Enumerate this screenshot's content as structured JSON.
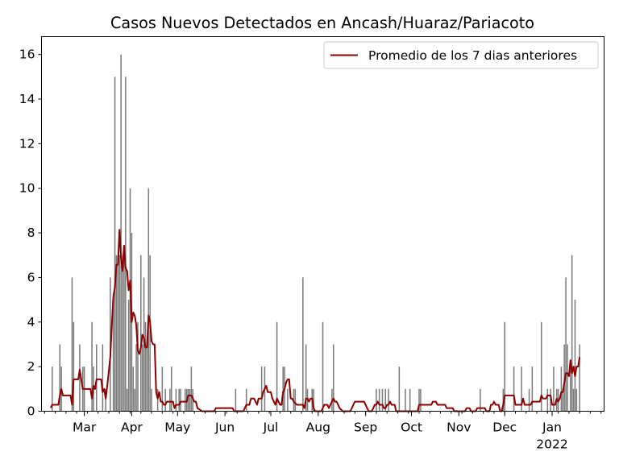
{
  "chart_data": {
    "type": "bar",
    "title": "Casos Nuevos Detectados en Ancash/Huaraz/Pariacoto",
    "xlabel": "",
    "ylabel": "",
    "ylim": [
      0,
      16.8
    ],
    "yticks": [
      0,
      2,
      4,
      6,
      8,
      10,
      12,
      14,
      16
    ],
    "x_range_days": [
      -1,
      367
    ],
    "x_start_date": "2021-02-01",
    "xticks": [
      {
        "day": 27,
        "label": "Mar",
        "sublabel": ""
      },
      {
        "day": 58,
        "label": "Apr",
        "sublabel": ""
      },
      {
        "day": 88,
        "label": "May",
        "sublabel": ""
      },
      {
        "day": 119,
        "label": "Jun",
        "sublabel": ""
      },
      {
        "day": 149,
        "label": "Jul",
        "sublabel": ""
      },
      {
        "day": 180,
        "label": "Aug",
        "sublabel": ""
      },
      {
        "day": 211,
        "label": "Sep",
        "sublabel": ""
      },
      {
        "day": 241,
        "label": "Oct",
        "sublabel": ""
      },
      {
        "day": 272,
        "label": "Nov",
        "sublabel": ""
      },
      {
        "day": 302,
        "label": "Dec",
        "sublabel": ""
      },
      {
        "day": 333,
        "label": "Jan",
        "sublabel": "2022"
      }
    ],
    "grid": false,
    "legend_position": "top-right",
    "bar_color": "#7a7a7a",
    "line_color": "#8b0000",
    "bars": [
      [
        6,
        2
      ],
      [
        11,
        3
      ],
      [
        12,
        2
      ],
      [
        19,
        6
      ],
      [
        20,
        4
      ],
      [
        24,
        3
      ],
      [
        26,
        2
      ],
      [
        27,
        2
      ],
      [
        32,
        4
      ],
      [
        33,
        2
      ],
      [
        35,
        3
      ],
      [
        39,
        3
      ],
      [
        41,
        1
      ],
      [
        44,
        6
      ],
      [
        46,
        5
      ],
      [
        47,
        15
      ],
      [
        48,
        7
      ],
      [
        49,
        7
      ],
      [
        50,
        7
      ],
      [
        51,
        16
      ],
      [
        52,
        7
      ],
      [
        53,
        7
      ],
      [
        54,
        15
      ],
      [
        55,
        1
      ],
      [
        56,
        5
      ],
      [
        57,
        10
      ],
      [
        58,
        8
      ],
      [
        59,
        2
      ],
      [
        60,
        1
      ],
      [
        61,
        3
      ],
      [
        62,
        4
      ],
      [
        64,
        7
      ],
      [
        65,
        3
      ],
      [
        66,
        6
      ],
      [
        67,
        4
      ],
      [
        68,
        3
      ],
      [
        69,
        10
      ],
      [
        70,
        7
      ],
      [
        71,
        1
      ],
      [
        75,
        1
      ],
      [
        78,
        2
      ],
      [
        80,
        1
      ],
      [
        83,
        1
      ],
      [
        84,
        2
      ],
      [
        87,
        1
      ],
      [
        89,
        1
      ],
      [
        90,
        1
      ],
      [
        93,
        1
      ],
      [
        94,
        1
      ],
      [
        95,
        1
      ],
      [
        96,
        1
      ],
      [
        97,
        2
      ],
      [
        98,
        1
      ],
      [
        126,
        1
      ],
      [
        133,
        1
      ],
      [
        143,
        2
      ],
      [
        145,
        2
      ],
      [
        153,
        4
      ],
      [
        157,
        2
      ],
      [
        158,
        2
      ],
      [
        160,
        1
      ],
      [
        164,
        1
      ],
      [
        165,
        1
      ],
      [
        170,
        6
      ],
      [
        172,
        3
      ],
      [
        173,
        1
      ],
      [
        176,
        1
      ],
      [
        177,
        1
      ],
      [
        183,
        4
      ],
      [
        189,
        1
      ],
      [
        190,
        3
      ],
      [
        218,
        1
      ],
      [
        220,
        1
      ],
      [
        222,
        1
      ],
      [
        224,
        1
      ],
      [
        226,
        1
      ],
      [
        233,
        2
      ],
      [
        237,
        1
      ],
      [
        240,
        1
      ],
      [
        246,
        1
      ],
      [
        247,
        1
      ],
      [
        286,
        1
      ],
      [
        301,
        1
      ],
      [
        302,
        4
      ],
      [
        308,
        2
      ],
      [
        313,
        2
      ],
      [
        318,
        1
      ],
      [
        320,
        2
      ],
      [
        326,
        4
      ],
      [
        330,
        1
      ],
      [
        332,
        1
      ],
      [
        334,
        2
      ],
      [
        336,
        1
      ],
      [
        337,
        1
      ],
      [
        339,
        2
      ],
      [
        340,
        1
      ],
      [
        341,
        3
      ],
      [
        342,
        6
      ],
      [
        343,
        3
      ],
      [
        345,
        2
      ],
      [
        346,
        7
      ],
      [
        347,
        1
      ],
      [
        348,
        5
      ],
      [
        349,
        1
      ],
      [
        351,
        3
      ]
    ],
    "series": [
      {
        "name": "Promedio de los 7 dias anteriores",
        "points": [
          [
            5,
            0.15
          ],
          [
            6,
            0.29
          ],
          [
            10,
            0.29
          ],
          [
            11,
            0.71
          ],
          [
            12,
            1.0
          ],
          [
            13,
            0.71
          ],
          [
            18,
            0.71
          ],
          [
            19,
            0.29
          ],
          [
            20,
            1.43
          ],
          [
            23,
            1.43
          ],
          [
            24,
            1.86
          ],
          [
            25,
            1.43
          ],
          [
            26,
            1.0
          ],
          [
            31,
            1.0
          ],
          [
            32,
            0.57
          ],
          [
            33,
            1.14
          ],
          [
            34,
            1.0
          ],
          [
            35,
            1.43
          ],
          [
            38,
            1.43
          ],
          [
            39,
            0.86
          ],
          [
            40,
            1.0
          ],
          [
            41,
            0.57
          ],
          [
            42,
            1.14
          ],
          [
            44,
            2.43
          ],
          [
            45,
            3.86
          ],
          [
            46,
            5.14
          ],
          [
            47,
            5.57
          ],
          [
            48,
            6.57
          ],
          [
            49,
            6.57
          ],
          [
            50,
            8.14
          ],
          [
            51,
            6.86
          ],
          [
            52,
            6.29
          ],
          [
            53,
            7.43
          ],
          [
            54,
            6.43
          ],
          [
            55,
            6.29
          ],
          [
            56,
            5.43
          ],
          [
            57,
            5.86
          ],
          [
            58,
            4.0
          ],
          [
            59,
            4.43
          ],
          [
            60,
            4.29
          ],
          [
            61,
            3.86
          ],
          [
            62,
            2.71
          ],
          [
            63,
            2.57
          ],
          [
            64,
            2.86
          ],
          [
            65,
            3.43
          ],
          [
            66,
            3.29
          ],
          [
            67,
            2.86
          ],
          [
            68,
            2.86
          ],
          [
            69,
            4.29
          ],
          [
            70,
            4.0
          ],
          [
            71,
            3.14
          ],
          [
            72,
            3.0
          ],
          [
            73,
            3.0
          ],
          [
            74,
            0.86
          ],
          [
            75,
            0.57
          ],
          [
            76,
            0.86
          ],
          [
            77,
            0.43
          ],
          [
            78,
            0.43
          ],
          [
            79,
            0.29
          ],
          [
            80,
            0.29
          ],
          [
            81,
            0.43
          ],
          [
            85,
            0.43
          ],
          [
            86,
            0.14
          ],
          [
            87,
            0.29
          ],
          [
            89,
            0.29
          ],
          [
            90,
            0.43
          ],
          [
            94,
            0.43
          ],
          [
            95,
            0.71
          ],
          [
            97,
            0.71
          ],
          [
            98,
            0.57
          ],
          [
            99,
            0.43
          ],
          [
            100,
            0.43
          ],
          [
            101,
            0.14
          ],
          [
            104,
            0.0
          ],
          [
            112,
            0.0
          ],
          [
            113,
            0.14
          ],
          [
            118,
            0.14
          ],
          [
            124,
            0.14
          ],
          [
            125,
            0.0
          ],
          [
            131,
            0.0
          ],
          [
            132,
            0.14
          ],
          [
            133,
            0.29
          ],
          [
            135,
            0.29
          ],
          [
            136,
            0.57
          ],
          [
            138,
            0.57
          ],
          [
            139,
            0.43
          ],
          [
            140,
            0.29
          ],
          [
            141,
            0.57
          ],
          [
            143,
            0.57
          ],
          [
            144,
            0.86
          ],
          [
            146,
            1.14
          ],
          [
            147,
            0.86
          ],
          [
            149,
            0.86
          ],
          [
            150,
            0.57
          ],
          [
            151,
            0.43
          ],
          [
            152,
            0.29
          ],
          [
            153,
            0.57
          ],
          [
            154,
            0.43
          ],
          [
            155,
            0.29
          ],
          [
            156,
            0.29
          ],
          [
            157,
            0.86
          ],
          [
            158,
            1.0
          ],
          [
            159,
            1.29
          ],
          [
            160,
            1.43
          ],
          [
            161,
            1.43
          ],
          [
            162,
            0.57
          ],
          [
            163,
            0.57
          ],
          [
            164,
            0.43
          ],
          [
            166,
            0.29
          ],
          [
            170,
            0.29
          ],
          [
            171,
            0.14
          ],
          [
            172,
            0.57
          ],
          [
            173,
            0.57
          ],
          [
            174,
            0.43
          ],
          [
            175,
            0.57
          ],
          [
            176,
            0.57
          ],
          [
            177,
            0.14
          ],
          [
            178,
            0.0
          ],
          [
            182,
            0.0
          ],
          [
            183,
            0.14
          ],
          [
            184,
            0.29
          ],
          [
            186,
            0.29
          ],
          [
            187,
            0.14
          ],
          [
            188,
            0.29
          ],
          [
            189,
            0.43
          ],
          [
            190,
            0.57
          ],
          [
            191,
            0.43
          ],
          [
            192,
            0.43
          ],
          [
            193,
            0.29
          ],
          [
            194,
            0.14
          ],
          [
            196,
            0.0
          ],
          [
            201,
            0.0
          ],
          [
            202,
            0.14
          ],
          [
            203,
            0.29
          ],
          [
            204,
            0.43
          ],
          [
            210,
            0.43
          ],
          [
            211,
            0.29
          ],
          [
            212,
            0.14
          ],
          [
            213,
            0.0
          ],
          [
            215,
            0.0
          ],
          [
            216,
            0.14
          ],
          [
            217,
            0.29
          ],
          [
            218,
            0.29
          ],
          [
            219,
            0.43
          ],
          [
            220,
            0.29
          ],
          [
            222,
            0.29
          ],
          [
            223,
            0.14
          ],
          [
            224,
            0.14
          ],
          [
            225,
            0.29
          ],
          [
            226,
            0.29
          ],
          [
            227,
            0.43
          ],
          [
            228,
            0.29
          ],
          [
            230,
            0.29
          ],
          [
            231,
            0.0
          ],
          [
            245,
            0.0
          ],
          [
            246,
            0.29
          ],
          [
            247,
            0.29
          ],
          [
            254,
            0.29
          ],
          [
            255,
            0.43
          ],
          [
            257,
            0.43
          ],
          [
            258,
            0.29
          ],
          [
            263,
            0.29
          ],
          [
            264,
            0.14
          ],
          [
            268,
            0.14
          ],
          [
            269,
            0.0
          ],
          [
            276,
            0.0
          ],
          [
            277,
            0.14
          ],
          [
            279,
            0.14
          ],
          [
            280,
            0.0
          ],
          [
            283,
            0.0
          ],
          [
            284,
            0.14
          ],
          [
            289,
            0.14
          ],
          [
            290,
            0.0
          ],
          [
            292,
            0.0
          ],
          [
            293,
            0.29
          ],
          [
            294,
            0.29
          ],
          [
            295,
            0.43
          ],
          [
            296,
            0.29
          ],
          [
            298,
            0.29
          ],
          [
            299,
            0.0
          ],
          [
            300,
            0.0
          ],
          [
            301,
            0.29
          ],
          [
            302,
            0.71
          ],
          [
            308,
            0.71
          ],
          [
            309,
            0.29
          ],
          [
            313,
            0.29
          ],
          [
            314,
            0.57
          ],
          [
            315,
            0.29
          ],
          [
            319,
            0.29
          ],
          [
            320,
            0.43
          ],
          [
            325,
            0.43
          ],
          [
            326,
            0.71
          ],
          [
            327,
            0.57
          ],
          [
            329,
            0.57
          ],
          [
            330,
            0.71
          ],
          [
            332,
            0.71
          ],
          [
            333,
            0.29
          ],
          [
            335,
            0.29
          ],
          [
            336,
            0.57
          ],
          [
            337,
            0.43
          ],
          [
            338,
            0.57
          ],
          [
            339,
            0.86
          ],
          [
            340,
            0.86
          ],
          [
            341,
            1.29
          ],
          [
            342,
            1.71
          ],
          [
            343,
            1.71
          ],
          [
            344,
            1.57
          ],
          [
            345,
            2.29
          ],
          [
            346,
            1.71
          ],
          [
            347,
            2.0
          ],
          [
            348,
            1.57
          ],
          [
            349,
            2.0
          ],
          [
            350,
            2.0
          ],
          [
            351,
            2.43
          ]
        ]
      }
    ]
  }
}
